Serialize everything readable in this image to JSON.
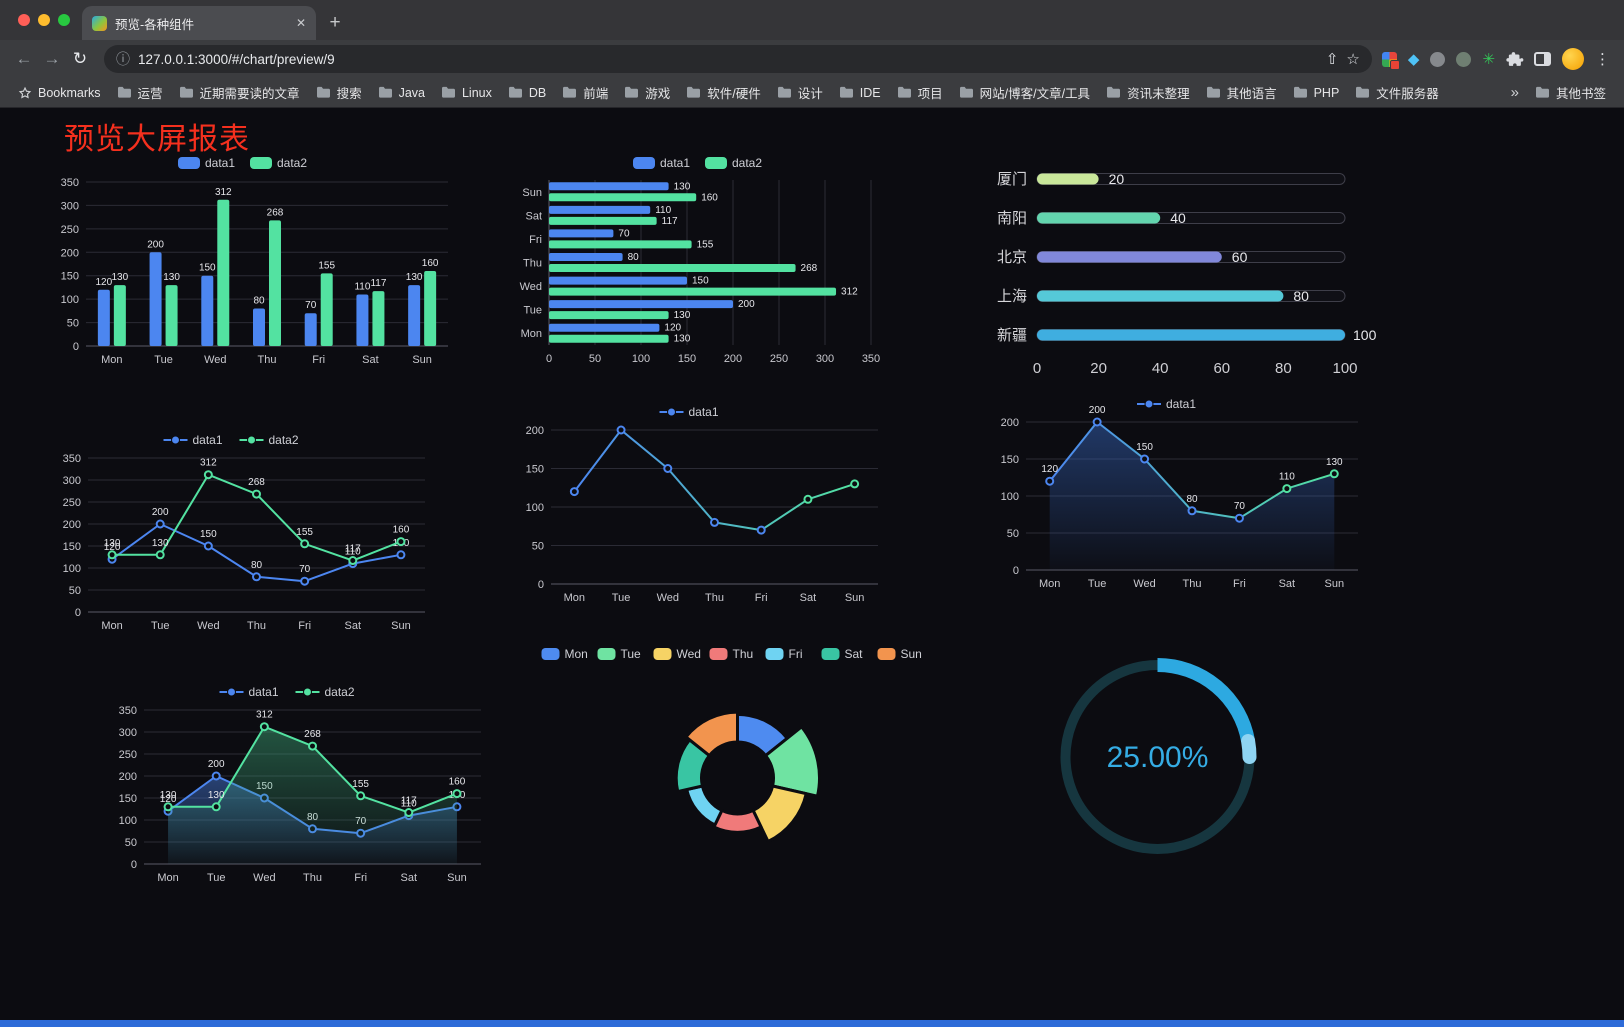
{
  "browser": {
    "tab": {
      "title": "预览-各种组件"
    },
    "url": "127.0.0.1:3000/#/chart/preview/9",
    "bookmarks_label": "Bookmarks",
    "bookmarks": [
      "运营",
      "近期需要读的文章",
      "搜索",
      "Java",
      "Linux",
      "DB",
      "前端",
      "游戏",
      "软件/硬件",
      "设计",
      "IDE",
      "项目",
      "网站/博客/文章/工具",
      "资讯未整理",
      "其他语言",
      "PHP",
      "文件服务器"
    ],
    "bookmarks_overflow": "»",
    "other_bookmarks": "其他书签",
    "glyphs": {
      "back": "←",
      "forward": "→",
      "reload": "↻",
      "info": "ⓘ",
      "share": "⇧",
      "star": "☆",
      "gem": "◆",
      "burst": "✳",
      "kebab": "⋮",
      "new_tab": "+",
      "close_tab": "✕"
    }
  },
  "colors": {
    "accent_blue": "#2e6bd8",
    "title_red": "#f5301e",
    "traffic_lights": [
      "#ff5f57",
      "#febc2e",
      "#28c840"
    ]
  },
  "page": {
    "title": "预览大屏报表"
  },
  "chart_data": [
    {
      "type": "bar",
      "categories": [
        "Mon",
        "Tue",
        "Wed",
        "Thu",
        "Fri",
        "Sat",
        "Sun"
      ],
      "series": [
        {
          "name": "data1",
          "color": "#4c86f0",
          "values": [
            120,
            200,
            150,
            80,
            70,
            110,
            130
          ]
        },
        {
          "name": "data2",
          "color": "#53e2a1",
          "values": [
            130,
            130,
            312,
            268,
            155,
            117,
            160
          ]
        }
      ],
      "ylim": [
        0,
        350
      ],
      "ystep": 50,
      "labels": true,
      "legend_position": "top",
      "grid": true
    },
    {
      "type": "hbar",
      "categories": [
        "Mon",
        "Tue",
        "Wed",
        "Thu",
        "Fri",
        "Sat",
        "Sun"
      ],
      "series": [
        {
          "name": "data1",
          "color": "#4c86f0",
          "values": [
            120,
            200,
            150,
            80,
            70,
            110,
            130
          ]
        },
        {
          "name": "data2",
          "color": "#53e2a1",
          "values": [
            130,
            130,
            312,
            268,
            155,
            117,
            160
          ]
        }
      ],
      "xlim": [
        0,
        350
      ],
      "xstep": 50,
      "labels": true,
      "legend_position": "top",
      "grid": true
    },
    {
      "type": "capsule",
      "items": [
        {
          "label": "厦门",
          "value": 20,
          "color": "#c9e79a"
        },
        {
          "label": "南阳",
          "value": 40,
          "color": "#63d5ae"
        },
        {
          "label": "北京",
          "value": 60,
          "color": "#8188da"
        },
        {
          "label": "上海",
          "value": 80,
          "color": "#55c9d8"
        },
        {
          "label": "新疆",
          "value": 100,
          "color": "#3faee0"
        }
      ],
      "max": 100,
      "xticks": [
        0,
        20,
        40,
        60,
        80,
        100
      ]
    },
    {
      "type": "line",
      "categories": [
        "Mon",
        "Tue",
        "Wed",
        "Thu",
        "Fri",
        "Sat",
        "Sun"
      ],
      "series": [
        {
          "name": "data1",
          "color": "#4c86f0",
          "values": [
            120,
            200,
            150,
            80,
            70,
            110,
            130
          ]
        },
        {
          "name": "data2",
          "color": "#53e2a1",
          "values": [
            130,
            130,
            312,
            268,
            155,
            117,
            160
          ]
        }
      ],
      "ylim": [
        0,
        350
      ],
      "ystep": 50,
      "labels": true,
      "legend_position": "top",
      "grid": true
    },
    {
      "type": "line",
      "categories": [
        "Mon",
        "Tue",
        "Wed",
        "Thu",
        "Fri",
        "Sat",
        "Sun"
      ],
      "series": [
        {
          "name": "data1",
          "color": "#4c86f0",
          "color2": "#53e2a1",
          "values": [
            120,
            200,
            150,
            80,
            70,
            110,
            130
          ]
        }
      ],
      "ylim": [
        0,
        200
      ],
      "ystep": 50,
      "labels": false,
      "legend_position": "top",
      "grid": true
    },
    {
      "type": "line",
      "categories": [
        "Mon",
        "Tue",
        "Wed",
        "Thu",
        "Fri",
        "Sat",
        "Sun"
      ],
      "series": [
        {
          "name": "data1",
          "color": "#4c86f0",
          "color2": "#53e2a1",
          "area": true,
          "area_color": "#3a6fd0",
          "values": [
            120,
            200,
            150,
            80,
            70,
            110,
            130
          ]
        }
      ],
      "ylim": [
        0,
        200
      ],
      "ystep": 50,
      "labels": true,
      "legend_position": "top",
      "grid": true
    },
    {
      "type": "line",
      "categories": [
        "Mon",
        "Tue",
        "Wed",
        "Thu",
        "Fri",
        "Sat",
        "Sun"
      ],
      "series": [
        {
          "name": "data1",
          "color": "#4c86f0",
          "area": true,
          "area_color": "#4c86f0",
          "values": [
            120,
            200,
            150,
            80,
            70,
            110,
            130
          ]
        },
        {
          "name": "data2",
          "color": "#53e2a1",
          "area": true,
          "area_color": "#3fae7c",
          "values": [
            130,
            130,
            312,
            268,
            155,
            117,
            160
          ]
        }
      ],
      "ylim": [
        0,
        350
      ],
      "ystep": 50,
      "labels": true,
      "legend_position": "top",
      "grid": true
    },
    {
      "type": "rose",
      "legend": [
        "Mon",
        "Tue",
        "Wed",
        "Thu",
        "Fri",
        "Sat",
        "Sun"
      ],
      "items": [
        {
          "name": "Mon",
          "value": 120,
          "color": "#4e8bf0"
        },
        {
          "name": "Tue",
          "value": 200,
          "color": "#6fe3a2"
        },
        {
          "name": "Wed",
          "value": 150,
          "color": "#f6d365"
        },
        {
          "name": "Thu",
          "value": 80,
          "color": "#f07a7a"
        },
        {
          "name": "Fri",
          "value": 70,
          "color": "#6fd3f2"
        },
        {
          "name": "Sat",
          "value": 110,
          "color": "#39c5a3"
        },
        {
          "name": "Sun",
          "value": 130,
          "color": "#f2944e"
        }
      ]
    },
    {
      "type": "gauge",
      "value": 25,
      "text": "25.00%",
      "color": "#2da9e1",
      "track_color": "#16363f"
    }
  ]
}
